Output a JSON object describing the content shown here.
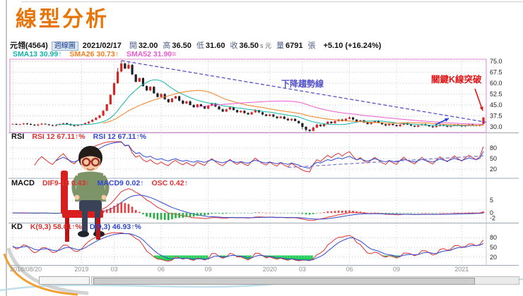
{
  "slide": {
    "title": "線型分析"
  },
  "header": {
    "symbol": "元翎(4564)",
    "period": "週線圖",
    "date": "2021/02/17",
    "open_label": "開",
    "open": "32.00",
    "high_label": "高",
    "high": "36.50",
    "low_label": "低",
    "low": "31.60",
    "close_label": "收",
    "close": "36.50",
    "close_suffix": "s 元",
    "volume_label": "量",
    "volume": "6791",
    "volume_unit": "張",
    "change": "+5.10 (+16.24%)"
  },
  "legend": {
    "sma13": {
      "label": "SMA13 30.99↑",
      "color": "#14b4aa"
    },
    "sma26": {
      "label": "SMA26 30.73↑",
      "color": "#f08020"
    },
    "sma52": {
      "label": "SMA52 31.90=",
      "color": "#ec5ad0"
    }
  },
  "colors": {
    "title": "#e8750a",
    "up": "#d62420",
    "down": "#1f1f28",
    "trend": "#5252cc",
    "breakout": "#e01414",
    "fast": "#e03030",
    "slow": "#3048d0",
    "macd_pos": "#e84040",
    "macd_neg": "#22b040",
    "oversold_fill": "#00c83c",
    "grid": "#c8c8d0",
    "frame": "#e08ad0"
  },
  "chart_data": {
    "type": "candlestick",
    "title": "線型分析",
    "symbol": "元翎(4564)",
    "interval": "weekly",
    "ylim": [
      26,
      78
    ],
    "price_gridlines": [
      75.0,
      67.5,
      60.0,
      52.5,
      45.0,
      37.5,
      30.0
    ],
    "x_tick_labels": [
      "2018/08/20",
      "2019",
      "03",
      "06",
      "09",
      "2020",
      "03",
      "06",
      "09",
      "2021"
    ],
    "x_tick_indices": [
      0,
      19,
      28,
      41,
      54,
      71,
      80,
      93,
      106,
      124
    ],
    "first_open": 31.8,
    "closes": [
      32.0,
      31.5,
      31.8,
      32.3,
      31.9,
      31.4,
      31.0,
      31.6,
      32.1,
      31.7,
      31.2,
      30.8,
      31.3,
      31.9,
      32.4,
      31.8,
      31.1,
      30.7,
      31.2,
      31.8,
      32.6,
      33.5,
      34.8,
      36.2,
      37.8,
      41.0,
      45.5,
      52.0,
      60.0,
      68.0,
      73.5,
      70.0,
      72.5,
      66.0,
      61.0,
      63.5,
      58.0,
      55.0,
      57.5,
      53.0,
      50.5,
      52.5,
      49.0,
      47.0,
      49.5,
      51.0,
      48.0,
      46.0,
      47.5,
      45.0,
      43.5,
      45.5,
      44.0,
      42.5,
      44.5,
      46.0,
      44.0,
      42.0,
      40.5,
      42.0,
      43.5,
      41.5,
      40.0,
      41.0,
      39.5,
      38.5,
      40.0,
      41.5,
      40.0,
      38.5,
      37.5,
      38.5,
      37.0,
      36.0,
      37.0,
      35.5,
      34.5,
      35.5,
      34.0,
      32.5,
      30.0,
      28.0,
      27.2,
      29.5,
      31.5,
      30.5,
      32.0,
      33.5,
      32.5,
      34.0,
      35.0,
      34.0,
      35.5,
      36.5,
      35.0,
      33.5,
      34.5,
      33.0,
      32.0,
      33.0,
      34.0,
      33.0,
      31.8,
      31.0,
      32.0,
      31.2,
      30.5,
      31.5,
      32.5,
      31.5,
      30.8,
      30.2,
      31.0,
      31.8,
      31.0,
      30.4,
      29.8,
      30.6,
      31.4,
      30.8,
      30.2,
      30.8,
      31.5,
      30.9,
      30.4,
      31.0,
      31.6,
      31.2,
      30.8,
      31.4,
      36.5
    ],
    "high_overrides": {
      "29": 70.5,
      "30": 75.5,
      "32": 74.2
    },
    "low_overrides": {
      "80": 28.4,
      "81": 26.9,
      "82": 26.5
    },
    "last_bar": {
      "date": "2021/02/17",
      "open": 32.0,
      "high": 36.5,
      "low": 31.6,
      "close": 36.5,
      "volume_lots": 6791,
      "change_text": "+5.10 (+16.24%)"
    },
    "overlays": [
      "SMA13",
      "SMA26",
      "SMA52"
    ],
    "trendline": {
      "type": "descending",
      "label": "下降趨勢線",
      "from_index": 30,
      "from_price": 75.5,
      "to_price_at_right": 33.2
    },
    "breakout": {
      "label": "關鍵K線突破",
      "index": 130
    },
    "indicator_panels": [
      {
        "name": "RSI",
        "lines": [
          "RSI 12 67.11↑%",
          "RSI 12 67.11↑%"
        ],
        "axis": [
          80,
          50,
          20
        ]
      },
      {
        "name": "MACD",
        "lines": [
          "DIF9-18 0.43↑",
          "MACD9 0.02↑",
          "OSC 0.42↑"
        ],
        "axis": [
          5,
          0,
          -2
        ]
      },
      {
        "name": "KD",
        "lines": [
          "K(9,3) 58.01↑%",
          "D(9,3) 46.93↑%"
        ],
        "axis": [
          80,
          50,
          20
        ]
      }
    ],
    "note": "indicator curves and SMA overlays derived from closes"
  }
}
